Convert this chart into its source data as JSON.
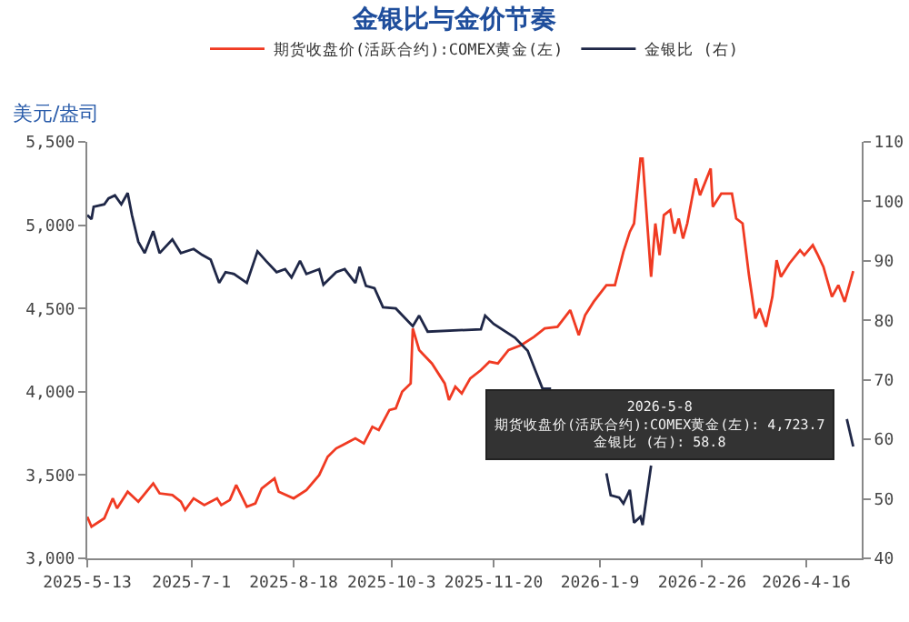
{
  "chart_data": {
    "type": "line",
    "title": "金银比与金价节奏",
    "ylabel": "美元/盎司",
    "legend": "top",
    "xlim": [
      "2025-05-13",
      "2026-05-12"
    ],
    "xticks": [
      {
        "value": "2025-05-13",
        "label": "2025-5-13"
      },
      {
        "value": "2025-07-01",
        "label": "2025-7-1"
      },
      {
        "value": "2025-08-18",
        "label": "2025-8-18"
      },
      {
        "value": "2025-10-03",
        "label": "2025-10-3"
      },
      {
        "value": "2025-11-20",
        "label": "2025-11-20"
      },
      {
        "value": "2026-01-09",
        "label": "2026-1-9"
      },
      {
        "value": "2026-02-26",
        "label": "2026-2-26"
      },
      {
        "value": "2026-04-16",
        "label": "2026-4-16"
      }
    ],
    "ylim": [
      3000,
      5500
    ],
    "yticks": [
      {
        "value": 3000,
        "label": "3,000"
      },
      {
        "value": 3500,
        "label": "3,500"
      },
      {
        "value": 4000,
        "label": "4,000"
      },
      {
        "value": 4500,
        "label": "4,500"
      },
      {
        "value": 5000,
        "label": "5,000"
      },
      {
        "value": 5500,
        "label": "5,500"
      }
    ],
    "y2lim": [
      40,
      110
    ],
    "y2ticks": [
      40,
      50,
      60,
      70,
      80,
      90,
      100,
      110
    ],
    "series": [
      {
        "name": "期货收盘价(活跃合约):COMEX黄金(左)",
        "color": "#f03a22",
        "axis": "y",
        "x": [
          "2025-05-13",
          "2025-05-15",
          "2025-05-21",
          "2025-05-23",
          "2025-05-25",
          "2025-05-27",
          "2025-06-01",
          "2025-06-06",
          "2025-06-13",
          "2025-06-16",
          "2025-06-22",
          "2025-06-26",
          "2025-06-28",
          "2025-07-02",
          "2025-07-07",
          "2025-07-13",
          "2025-07-15",
          "2025-07-19",
          "2025-07-22",
          "2025-07-27",
          "2025-07-31",
          "2025-08-03",
          "2025-08-09",
          "2025-08-11",
          "2025-08-18",
          "2025-08-24",
          "2025-08-30",
          "2025-09-03",
          "2025-09-07",
          "2025-09-10",
          "2025-09-16",
          "2025-09-20",
          "2025-09-24",
          "2025-09-27",
          "2025-10-02",
          "2025-10-05",
          "2025-10-08",
          "2025-10-12",
          "2025-10-13",
          "2025-10-16",
          "2025-10-22",
          "2025-10-28",
          "2025-10-30",
          "2025-11-02",
          "2025-11-05",
          "2025-11-09",
          "2025-11-14",
          "2025-11-18",
          "2025-11-22",
          "2025-11-27",
          "2025-12-03",
          "2025-12-09",
          "2025-12-14",
          "2025-12-20",
          "2025-12-26",
          "2025-12-30",
          "2026-01-02",
          "2026-01-06",
          "2026-01-12",
          "2026-01-16",
          "2026-01-20",
          "2026-01-23",
          "2026-01-25",
          "2026-01-28",
          "2026-01-29",
          "2026-02-02",
          "2026-02-04",
          "2026-02-06",
          "2026-02-08",
          "2026-02-11",
          "2026-02-13",
          "2026-02-15",
          "2026-02-17",
          "2026-02-19",
          "2026-02-23",
          "2026-02-25",
          "2026-03-02",
          "2026-03-03",
          "2026-03-07",
          "2026-03-12",
          "2026-03-14",
          "2026-03-17",
          "2026-03-20",
          "2026-03-23",
          "2026-03-25",
          "2026-03-28",
          "2026-03-31",
          "2026-04-02",
          "2026-04-04",
          "2026-04-08",
          "2026-04-13",
          "2026-04-15",
          "2026-04-19",
          "2026-04-21",
          "2026-04-24",
          "2026-04-28",
          "2026-05-01",
          "2026-05-04",
          "2026-05-08"
        ],
        "values": [
          3250,
          3190,
          3240,
          3300,
          3360,
          3300,
          3400,
          3340,
          3450,
          3390,
          3380,
          3340,
          3290,
          3360,
          3320,
          3360,
          3320,
          3350,
          3440,
          3310,
          3330,
          3420,
          3480,
          3400,
          3360,
          3410,
          3500,
          3610,
          3660,
          3680,
          3720,
          3690,
          3790,
          3770,
          3890,
          3900,
          4000,
          4050,
          4380,
          4250,
          4170,
          4050,
          3950,
          4030,
          3990,
          4080,
          4130,
          4180,
          4170,
          4250,
          4280,
          4330,
          4380,
          4390,
          4490,
          4340,
          4460,
          4540,
          4640,
          4640,
          4840,
          4960,
          5010,
          5400,
          5400,
          4690,
          5010,
          4820,
          5060,
          5090,
          4950,
          5040,
          4920,
          5010,
          5280,
          5180,
          5340,
          5110,
          5190,
          5190,
          5040,
          5010,
          4700,
          4440,
          4500,
          4390,
          4570,
          4790,
          4690,
          4770,
          4850,
          4820,
          4880,
          4830,
          4750,
          4570,
          4640,
          4540,
          4723.7
        ]
      },
      {
        "name": "金银比 (右)",
        "color": "#1f2747",
        "axis": "y2",
        "x": [
          "2025-05-13",
          "2025-05-15",
          "2025-05-16",
          "2025-05-21",
          "2025-05-23",
          "2025-05-26",
          "2025-05-29",
          "2025-06-01",
          "2025-06-03",
          "2025-06-06",
          "2025-06-09",
          "2025-06-13",
          "2025-06-16",
          "2025-06-22",
          "2025-06-26",
          "2025-07-02",
          "2025-07-06",
          "2025-07-10",
          "2025-07-14",
          "2025-07-17",
          "2025-07-21",
          "2025-07-27",
          "2025-08-01",
          "2025-08-05",
          "2025-08-10",
          "2025-08-14",
          "2025-08-17",
          "2025-08-21",
          "2025-08-24",
          "2025-08-30",
          "2025-09-01",
          "2025-09-07",
          "2025-09-11",
          "2025-09-16",
          "2025-09-18",
          "2025-09-21",
          "2025-09-25",
          "2025-09-29",
          "2025-10-05",
          "2025-10-13",
          "2025-10-16",
          "2025-10-20",
          "2025-11-14",
          "2025-11-16",
          "2025-11-20",
          "2025-11-30",
          "2025-12-06",
          "2025-12-10",
          "2025-12-13",
          "2025-12-17",
          "2025-12-28",
          "2026-01-12",
          "2026-01-14",
          "2026-01-18",
          "2026-01-20",
          "2026-01-23",
          "2026-01-25",
          "2026-01-28",
          "2026-01-29",
          "2026-02-02",
          "2026-03-06",
          "2026-05-05",
          "2026-05-08"
        ],
        "values": [
          97.7,
          97.0,
          99.1,
          99.5,
          100.5,
          101,
          99.5,
          101.4,
          97.7,
          93.2,
          91.3,
          95,
          91.3,
          93.6,
          91.3,
          92,
          91,
          90.2,
          86.3,
          88.1,
          87.8,
          86.3,
          91.6,
          90,
          88.1,
          88.6,
          87.2,
          90,
          87.8,
          88.6,
          86,
          88.1,
          88.6,
          86.3,
          89,
          85.8,
          85.4,
          82.2,
          82,
          79,
          80.8,
          78.1,
          78.5,
          80.8,
          79.4,
          77.1,
          74.9,
          71.2,
          68.5,
          68.5,
          null,
          54.3,
          50.6,
          50.2,
          49.2,
          51.5,
          46,
          47,
          45.6,
          55.6,
          null,
          63.4,
          58.8
        ]
      }
    ],
    "annotations": [
      "2026-5-8\n期货收盘价(活跃合约):COMEX黄金(左): 4,723.7\n金银比 (右): 58.8"
    ]
  }
}
